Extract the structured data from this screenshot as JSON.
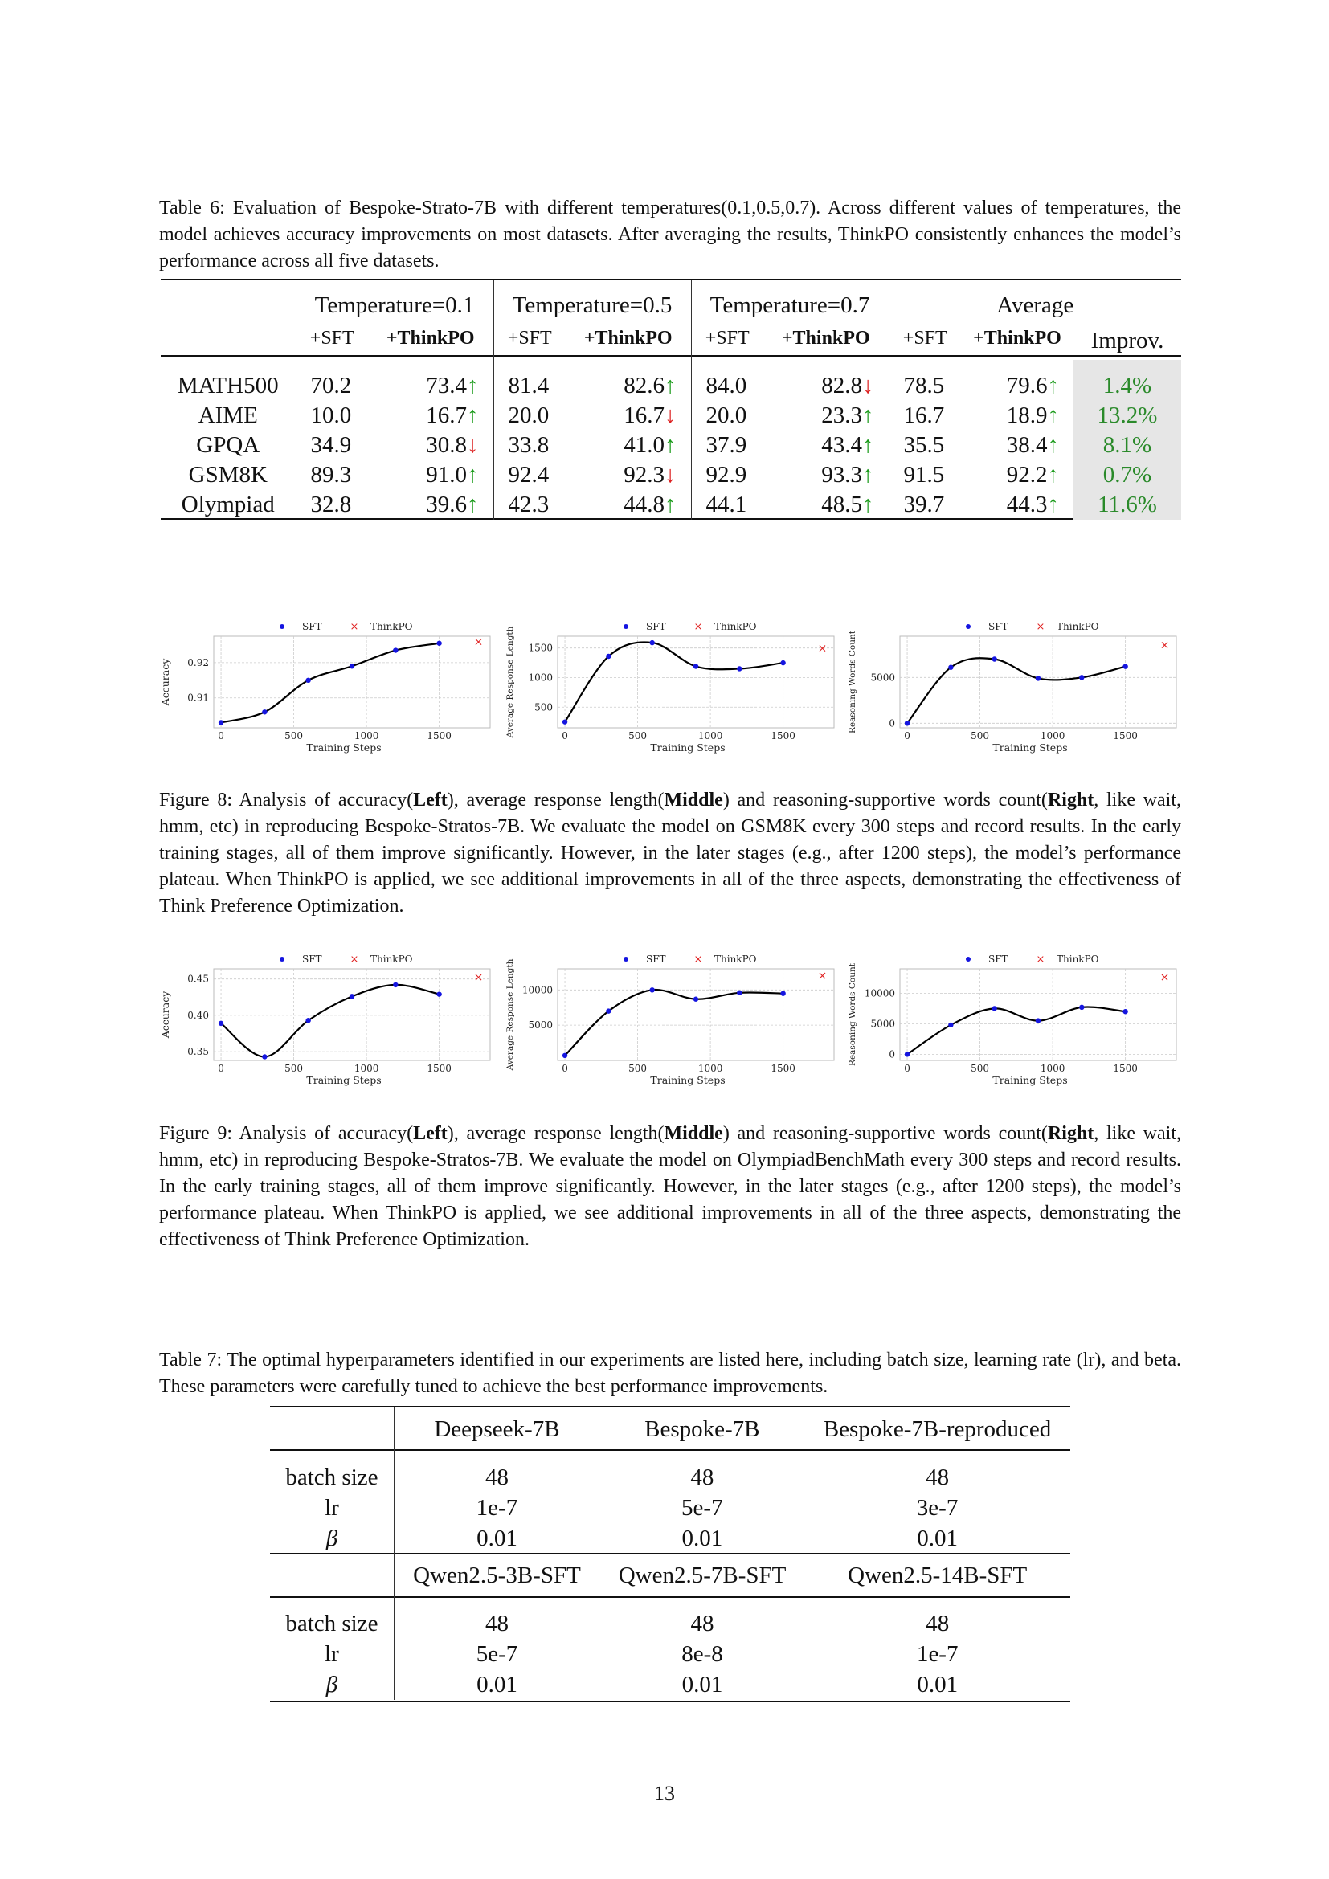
{
  "table6": {
    "caption": "Table 6: Evaluation of Bespoke-Strato-7B with different temperatures(0.1,0.5,0.7). Across different values of temperatures, the model achieves accuracy improvements on most datasets. After averaging the results, ThinkPO consistently enhances the model’s performance across all five datasets.",
    "groups": [
      "Temperature=0.1",
      "Temperature=0.5",
      "Temperature=0.7",
      "Average"
    ],
    "sub_sft": "+SFT",
    "sub_thinkpo": "+ThinkPO",
    "improv_label": "Improv.",
    "rows": [
      {
        "name": "MATH500",
        "cells": [
          "70.2",
          "73.4",
          "81.4",
          "82.6",
          "84.0",
          "82.8",
          "78.5",
          "79.6"
        ],
        "arrows": [
          "up",
          "up",
          "down",
          "up"
        ],
        "improv": "1.4%"
      },
      {
        "name": "AIME",
        "cells": [
          "10.0",
          "16.7",
          "20.0",
          "16.7",
          "20.0",
          "23.3",
          "16.7",
          "18.9"
        ],
        "arrows": [
          "up",
          "down",
          "up",
          "up"
        ],
        "improv": "13.2%"
      },
      {
        "name": "GPQA",
        "cells": [
          "34.9",
          "30.8",
          "33.8",
          "41.0",
          "37.9",
          "43.4",
          "35.5",
          "38.4"
        ],
        "arrows": [
          "down",
          "up",
          "up",
          "up"
        ],
        "improv": "8.1%"
      },
      {
        "name": "GSM8K",
        "cells": [
          "89.3",
          "91.0",
          "92.4",
          "92.3",
          "92.9",
          "93.3",
          "91.5",
          "92.2"
        ],
        "arrows": [
          "up",
          "down",
          "up",
          "up"
        ],
        "improv": "0.7%"
      },
      {
        "name": "Olympiad",
        "cells": [
          "32.8",
          "39.6",
          "42.3",
          "44.8",
          "44.1",
          "48.5",
          "39.7",
          "44.3"
        ],
        "arrows": [
          "up",
          "up",
          "up",
          "up"
        ],
        "improv": "11.6%"
      }
    ]
  },
  "figure8": {
    "caption_parts": [
      "Figure 8: Analysis of accuracy(",
      "Left",
      "), average response length(",
      "Middle",
      ") and reasoning-supportive words count(",
      "Right",
      ", like wait, hmm, etc) in reproducing Bespoke-Stratos-7B. We evaluate the model on GSM8K every 300 steps and record results. In the early training stages, all of them improve significantly. However, in the later stages (e.g., after 1200 steps), the model’s performance plateau. When ThinkPO is applied, we see additional improvements in all of the three aspects, demonstrating the effectiveness of Think Preference Optimization."
    ]
  },
  "figure9": {
    "caption_parts": [
      "Figure 9: Analysis of accuracy(",
      "Left",
      "), average response length(",
      "Middle",
      ") and reasoning-supportive words count(",
      "Right",
      ", like wait, hmm, etc) in reproducing Bespoke-Stratos-7B. We evaluate the model on OlympiadBenchMath every 300 steps and record results. In the early training stages, all of them improve significantly. However, in the later stages (e.g., after 1200 steps), the model’s performance plateau. When ThinkPO is applied, we see additional improvements in all of the three aspects, demonstrating the effectiveness of Think Preference Optimization."
    ]
  },
  "chart_data": [
    {
      "type": "scatter",
      "figure": "Figure 8",
      "panel": "left",
      "title": "",
      "xlabel": "Training Steps",
      "ylabel": "Accuracy",
      "xlim": [
        -50,
        1850
      ],
      "ylim": [
        0.9015,
        0.9275
      ],
      "xticks": [
        0,
        500,
        1000,
        1500
      ],
      "yticks": [
        0.91,
        0.92
      ],
      "ytick_labels": [
        "0.91",
        "0.92"
      ],
      "legend": "top",
      "grid": true,
      "series": [
        {
          "name": "SFT",
          "x": [
            0,
            300,
            600,
            900,
            1200,
            1500
          ],
          "y": [
            0.903,
            0.906,
            0.915,
            0.919,
            0.9235,
            0.9255
          ]
        },
        {
          "name": "ThinkPO",
          "x": [
            1770
          ],
          "y": [
            0.926
          ]
        }
      ]
    },
    {
      "type": "scatter",
      "figure": "Figure 8",
      "panel": "middle",
      "title": "",
      "xlabel": "Training Steps",
      "ylabel": "Average Response Length",
      "xlim": [
        -50,
        1850
      ],
      "ylim": [
        150,
        1700
      ],
      "xticks": [
        0,
        500,
        1000,
        1500
      ],
      "yticks": [
        500,
        1000,
        1500
      ],
      "ytick_labels": [
        "500",
        "1000",
        "1500"
      ],
      "legend": "top",
      "grid": true,
      "series": [
        {
          "name": "SFT",
          "x": [
            0,
            300,
            600,
            900,
            1200,
            1500
          ],
          "y": [
            250,
            1360,
            1590,
            1190,
            1150,
            1250
          ]
        },
        {
          "name": "ThinkPO",
          "x": [
            1770
          ],
          "y": [
            1500
          ]
        }
      ]
    },
    {
      "type": "scatter",
      "figure": "Figure 8",
      "panel": "right",
      "title": "",
      "xlabel": "Training Steps",
      "ylabel": "Reasoning Words Count",
      "xlim": [
        -50,
        1850
      ],
      "ylim": [
        -500,
        9500
      ],
      "xticks": [
        0,
        500,
        1000,
        1500
      ],
      "yticks": [
        0,
        5000
      ],
      "ytick_labels": [
        "0",
        "5000"
      ],
      "legend": "top",
      "grid": true,
      "series": [
        {
          "name": "SFT",
          "x": [
            0,
            300,
            600,
            900,
            1200,
            1500
          ],
          "y": [
            0,
            6100,
            7000,
            4900,
            5000,
            6200
          ]
        },
        {
          "name": "ThinkPO",
          "x": [
            1770
          ],
          "y": [
            8600
          ]
        }
      ]
    },
    {
      "type": "scatter",
      "figure": "Figure 9",
      "panel": "left",
      "title": "",
      "xlabel": "Training Steps",
      "ylabel": "Accuracy",
      "xlim": [
        -50,
        1850
      ],
      "ylim": [
        0.338,
        0.464
      ],
      "xticks": [
        0,
        500,
        1000,
        1500
      ],
      "yticks": [
        0.35,
        0.4,
        0.45
      ],
      "ytick_labels": [
        "0.35",
        "0.40",
        "0.45"
      ],
      "legend": "top",
      "grid": true,
      "series": [
        {
          "name": "SFT",
          "x": [
            0,
            300,
            600,
            900,
            1200,
            1500
          ],
          "y": [
            0.389,
            0.343,
            0.393,
            0.426,
            0.442,
            0.429
          ]
        },
        {
          "name": "ThinkPO",
          "x": [
            1770
          ],
          "y": [
            0.453
          ]
        }
      ]
    },
    {
      "type": "scatter",
      "figure": "Figure 9",
      "panel": "middle",
      "title": "",
      "xlabel": "Training Steps",
      "ylabel": "Average Response Length",
      "xlim": [
        -50,
        1850
      ],
      "ylim": [
        0,
        13000
      ],
      "xticks": [
        0,
        500,
        1000,
        1500
      ],
      "yticks": [
        5000,
        10000
      ],
      "ytick_labels": [
        "5000",
        "10000"
      ],
      "legend": "top",
      "grid": true,
      "series": [
        {
          "name": "SFT",
          "x": [
            0,
            300,
            600,
            900,
            1200,
            1500
          ],
          "y": [
            700,
            7000,
            10000,
            8700,
            9600,
            9500
          ]
        },
        {
          "name": "ThinkPO",
          "x": [
            1770
          ],
          "y": [
            12100
          ]
        }
      ]
    },
    {
      "type": "scatter",
      "figure": "Figure 9",
      "panel": "right",
      "title": "",
      "xlabel": "Training Steps",
      "ylabel": "Reasoning Words Count",
      "xlim": [
        -50,
        1850
      ],
      "ylim": [
        -1000,
        14000
      ],
      "xticks": [
        0,
        500,
        1000,
        1500
      ],
      "yticks": [
        0,
        5000,
        10000
      ],
      "ytick_labels": [
        "0",
        "5000",
        "10000"
      ],
      "legend": "top",
      "grid": true,
      "series": [
        {
          "name": "SFT",
          "x": [
            0,
            300,
            600,
            900,
            1200,
            1500
          ],
          "y": [
            0,
            4800,
            7500,
            5500,
            7700,
            7000
          ]
        },
        {
          "name": "ThinkPO",
          "x": [
            1770
          ],
          "y": [
            12700
          ]
        }
      ]
    }
  ],
  "table7": {
    "caption": "Table 7: The optimal hyperparameters identified in our experiments are listed here, including batch size, learning rate (lr), and beta. These parameters were carefully tuned to achieve the best performance improvements.",
    "blocks": [
      {
        "models": [
          "Deepseek-7B",
          "Bespoke-7B",
          "Bespoke-7B-reproduced"
        ],
        "rows": [
          {
            "label": "batch size",
            "values": [
              "48",
              "48",
              "48"
            ]
          },
          {
            "label": "lr",
            "values": [
              "1e-7",
              "5e-7",
              "3e-7"
            ]
          },
          {
            "label": "β",
            "values": [
              "0.01",
              "0.01",
              "0.01"
            ]
          }
        ]
      },
      {
        "models": [
          "Qwen2.5-3B-SFT",
          "Qwen2.5-7B-SFT",
          "Qwen2.5-14B-SFT"
        ],
        "rows": [
          {
            "label": "batch size",
            "values": [
              "48",
              "48",
              "48"
            ]
          },
          {
            "label": "lr",
            "values": [
              "5e-7",
              "8e-8",
              "1e-7"
            ]
          },
          {
            "label": "β",
            "values": [
              "0.01",
              "0.01",
              "0.01"
            ]
          }
        ]
      }
    ]
  },
  "page_number": "13",
  "arrow_up": "↑",
  "arrow_down": "↓"
}
